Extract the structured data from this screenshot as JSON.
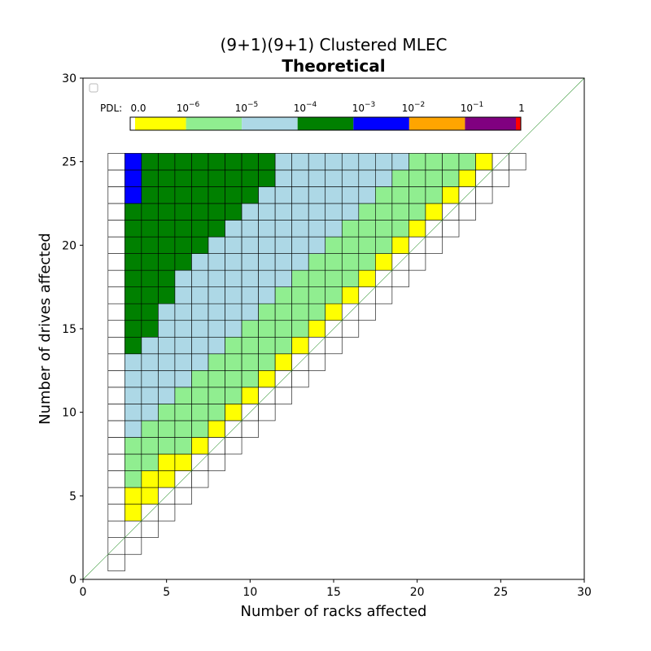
{
  "chart_data": {
    "type": "heatmap",
    "title": "(9+1)(9+1) Clustered MLEC",
    "subtitle": "Theoretical",
    "xlabel": "Number of racks affected",
    "ylabel": "Number of drives affected",
    "xlim": [
      0,
      30
    ],
    "ylim": [
      0,
      30
    ],
    "x_ticks": [
      "0",
      "5",
      "10",
      "15",
      "20",
      "25",
      "30"
    ],
    "y_ticks": [
      "0",
      "5",
      "10",
      "15",
      "20",
      "25",
      "30"
    ],
    "diagonal_reference_line": true,
    "legend_placement": "top-left",
    "colorbar": {
      "prefix": "PDL:",
      "tick_labels": [
        {
          "base": "0.0",
          "exp": ""
        },
        {
          "base": "10",
          "exp": "−6"
        },
        {
          "base": "10",
          "exp": "−5"
        },
        {
          "base": "10",
          "exp": "−4"
        },
        {
          "base": "10",
          "exp": "−3"
        },
        {
          "base": "10",
          "exp": "−2"
        },
        {
          "base": "10",
          "exp": "−1"
        },
        {
          "base": "1",
          "exp": ""
        }
      ],
      "bins": [
        {
          "name": "0",
          "color": "#ffffff"
        },
        {
          "name": "0 to 1e-6",
          "color": "#ffff00"
        },
        {
          "name": "1e-6 to 1e-5",
          "color": "#90ee90"
        },
        {
          "name": "1e-5 to 1e-4",
          "color": "#add8e6"
        },
        {
          "name": "1e-4 to 1e-3",
          "color": "#008000"
        },
        {
          "name": "1e-3 to 1e-2",
          "color": "#0000ff"
        },
        {
          "name": "1e-2 to 1e-1",
          "color": "#ffa500"
        },
        {
          "name": "1e-1 to 1",
          "color": "#800080"
        },
        {
          "name": "1",
          "color": "#ff0000"
        }
      ]
    },
    "grid_category_codes": "0=white (PDL 0), 1=yellow, 2=lightgreen, 3=lightblue, 4=green, 5=blue",
    "rows": [
      {
        "drives": 1,
        "cells": [
          0
        ]
      },
      {
        "drives": 2,
        "cells": [
          0,
          0
        ]
      },
      {
        "drives": 3,
        "cells": [
          0,
          0,
          0
        ]
      },
      {
        "drives": 4,
        "cells": [
          0,
          1,
          0,
          0
        ]
      },
      {
        "drives": 5,
        "cells": [
          0,
          1,
          1,
          0,
          0
        ]
      },
      {
        "drives": 6,
        "cells": [
          0,
          2,
          1,
          1,
          0,
          0
        ]
      },
      {
        "drives": 7,
        "cells": [
          0,
          2,
          2,
          1,
          1,
          0,
          0
        ]
      },
      {
        "drives": 8,
        "cells": [
          0,
          2,
          2,
          2,
          2,
          1,
          0,
          0
        ]
      },
      {
        "drives": 9,
        "cells": [
          0,
          3,
          2,
          2,
          2,
          2,
          1,
          0,
          0
        ]
      },
      {
        "drives": 10,
        "cells": [
          0,
          3,
          3,
          2,
          2,
          2,
          2,
          1,
          0,
          0
        ]
      },
      {
        "drives": 11,
        "cells": [
          0,
          3,
          3,
          3,
          2,
          2,
          2,
          2,
          1,
          0,
          0
        ]
      },
      {
        "drives": 12,
        "cells": [
          0,
          3,
          3,
          3,
          3,
          2,
          2,
          2,
          2,
          1,
          0,
          0
        ]
      },
      {
        "drives": 13,
        "cells": [
          0,
          3,
          3,
          3,
          3,
          3,
          2,
          2,
          2,
          2,
          1,
          0,
          0
        ]
      },
      {
        "drives": 14,
        "cells": [
          0,
          4,
          3,
          3,
          3,
          3,
          3,
          2,
          2,
          2,
          2,
          1,
          0,
          0
        ]
      },
      {
        "drives": 15,
        "cells": [
          0,
          4,
          4,
          3,
          3,
          3,
          3,
          3,
          2,
          2,
          2,
          2,
          1,
          0,
          0
        ]
      },
      {
        "drives": 16,
        "cells": [
          0,
          4,
          4,
          3,
          3,
          3,
          3,
          3,
          3,
          2,
          2,
          2,
          2,
          1,
          0,
          0
        ]
      },
      {
        "drives": 17,
        "cells": [
          0,
          4,
          4,
          4,
          3,
          3,
          3,
          3,
          3,
          3,
          2,
          2,
          2,
          2,
          1,
          0,
          0
        ]
      },
      {
        "drives": 18,
        "cells": [
          0,
          4,
          4,
          4,
          3,
          3,
          3,
          3,
          3,
          3,
          3,
          2,
          2,
          2,
          2,
          1,
          0,
          0
        ]
      },
      {
        "drives": 19,
        "cells": [
          0,
          4,
          4,
          4,
          4,
          3,
          3,
          3,
          3,
          3,
          3,
          3,
          2,
          2,
          2,
          2,
          1,
          0,
          0
        ]
      },
      {
        "drives": 20,
        "cells": [
          0,
          4,
          4,
          4,
          4,
          4,
          3,
          3,
          3,
          3,
          3,
          3,
          3,
          2,
          2,
          2,
          2,
          1,
          0,
          0
        ]
      },
      {
        "drives": 21,
        "cells": [
          0,
          4,
          4,
          4,
          4,
          4,
          4,
          3,
          3,
          3,
          3,
          3,
          3,
          3,
          2,
          2,
          2,
          2,
          1,
          0,
          0
        ]
      },
      {
        "drives": 22,
        "cells": [
          0,
          4,
          4,
          4,
          4,
          4,
          4,
          4,
          3,
          3,
          3,
          3,
          3,
          3,
          3,
          2,
          2,
          2,
          2,
          1,
          0,
          0
        ]
      },
      {
        "drives": 23,
        "cells": [
          0,
          5,
          4,
          4,
          4,
          4,
          4,
          4,
          4,
          3,
          3,
          3,
          3,
          3,
          3,
          3,
          2,
          2,
          2,
          2,
          1,
          0,
          0
        ]
      },
      {
        "drives": 24,
        "cells": [
          0,
          5,
          4,
          4,
          4,
          4,
          4,
          4,
          4,
          4,
          3,
          3,
          3,
          3,
          3,
          3,
          3,
          2,
          2,
          2,
          2,
          1,
          0,
          0
        ]
      },
      {
        "drives": 25,
        "cells": [
          0,
          5,
          4,
          4,
          4,
          4,
          4,
          4,
          4,
          4,
          3,
          3,
          3,
          3,
          3,
          3,
          3,
          3,
          2,
          2,
          2,
          2,
          1,
          0,
          0
        ]
      }
    ]
  }
}
